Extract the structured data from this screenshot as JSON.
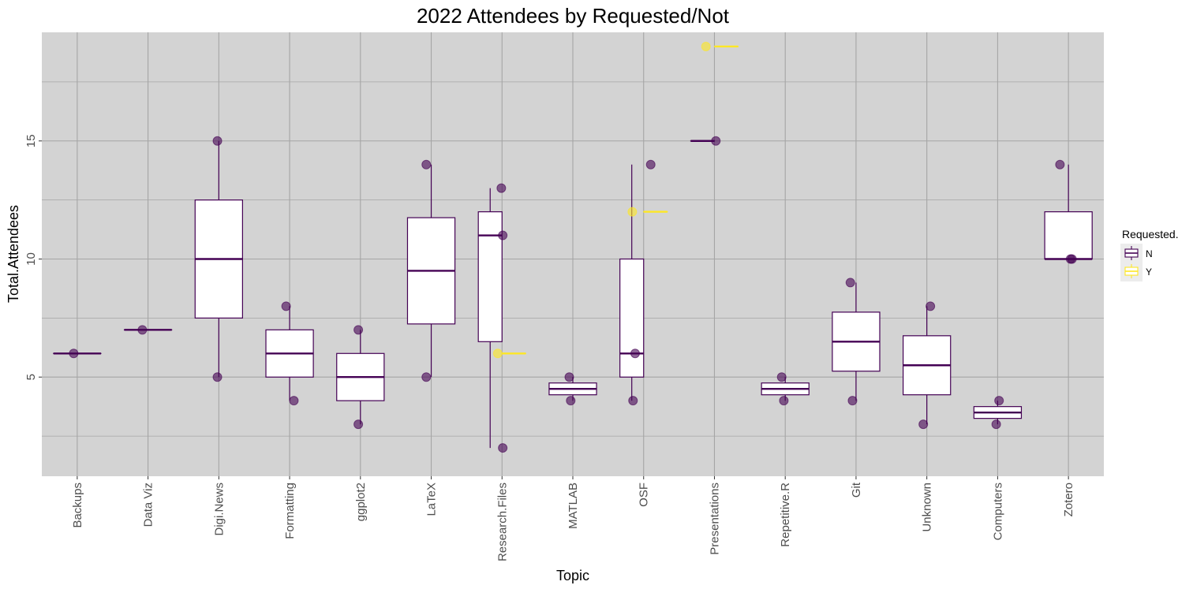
{
  "chart_data": {
    "type": "box",
    "title": "2022 Attendees by Requested/Not",
    "xlabel": "Topic",
    "ylabel": "Total.Attendees",
    "ylim": [
      0.8,
      19.6
    ],
    "y_ticks": [
      5,
      10,
      15
    ],
    "grid": true,
    "legend": {
      "title": "Requested.",
      "placement": "right",
      "entries": [
        {
          "key": "N",
          "label": "N",
          "color": "#440154"
        },
        {
          "key": "Y",
          "label": "Y",
          "color": "#FDE725"
        }
      ]
    },
    "categories": [
      "Backups",
      "Data Viz",
      "Digi.News",
      "Formatting",
      "ggplot2",
      "LaTeX",
      "Research.Files",
      "MATLAB",
      "OSF",
      "Presentations",
      "Repetitive.R",
      "Git",
      "Unknown",
      "Computers",
      "Zotero"
    ],
    "boxes": [
      {
        "category": "Backups",
        "group": "N",
        "dodged": false,
        "min": 6,
        "q1": 6,
        "median": 6,
        "q3": 6,
        "max": 6
      },
      {
        "category": "Data Viz",
        "group": "N",
        "dodged": false,
        "min": 7,
        "q1": 7,
        "median": 7,
        "q3": 7,
        "max": 7
      },
      {
        "category": "Digi.News",
        "group": "N",
        "dodged": false,
        "min": 5,
        "q1": 7.5,
        "median": 10,
        "q3": 12.5,
        "max": 15
      },
      {
        "category": "Formatting",
        "group": "N",
        "dodged": false,
        "min": 4,
        "q1": 5,
        "median": 6,
        "q3": 7,
        "max": 8
      },
      {
        "category": "ggplot2",
        "group": "N",
        "dodged": false,
        "min": 3,
        "q1": 4,
        "median": 5,
        "q3": 6,
        "max": 7
      },
      {
        "category": "LaTeX",
        "group": "N",
        "dodged": false,
        "min": 5,
        "q1": 7.25,
        "median": 9.5,
        "q3": 11.75,
        "max": 14
      },
      {
        "category": "Research.Files",
        "group": "N",
        "dodged": true,
        "min": 2,
        "q1": 6.5,
        "median": 11,
        "q3": 12,
        "max": 13
      },
      {
        "category": "Research.Files",
        "group": "Y",
        "dodged": true,
        "min": 6,
        "q1": 6,
        "median": 6,
        "q3": 6,
        "max": 6
      },
      {
        "category": "MATLAB",
        "group": "N",
        "dodged": false,
        "min": 4,
        "q1": 4.25,
        "median": 4.5,
        "q3": 4.75,
        "max": 5
      },
      {
        "category": "OSF",
        "group": "N",
        "dodged": true,
        "min": 4,
        "q1": 5,
        "median": 6,
        "q3": 10,
        "max": 14
      },
      {
        "category": "OSF",
        "group": "Y",
        "dodged": true,
        "min": 12,
        "q1": 12,
        "median": 12,
        "q3": 12,
        "max": 12
      },
      {
        "category": "Presentations",
        "group": "N",
        "dodged": true,
        "min": 15,
        "q1": 15,
        "median": 15,
        "q3": 15,
        "max": 15
      },
      {
        "category": "Presentations",
        "group": "Y",
        "dodged": true,
        "min": 19,
        "q1": 19,
        "median": 19,
        "q3": 19,
        "max": 19
      },
      {
        "category": "Repetitive.R",
        "group": "N",
        "dodged": false,
        "min": 4,
        "q1": 4.25,
        "median": 4.5,
        "q3": 4.75,
        "max": 5
      },
      {
        "category": "Git",
        "group": "N",
        "dodged": false,
        "min": 4,
        "q1": 5.25,
        "median": 6.5,
        "q3": 7.75,
        "max": 9
      },
      {
        "category": "Unknown",
        "group": "N",
        "dodged": false,
        "min": 3,
        "q1": 4.25,
        "median": 5.5,
        "q3": 6.75,
        "max": 8
      },
      {
        "category": "Computers",
        "group": "N",
        "dodged": false,
        "min": 3,
        "q1": 3.25,
        "median": 3.5,
        "q3": 3.75,
        "max": 4
      },
      {
        "category": "Zotero",
        "group": "N",
        "dodged": false,
        "min": 10,
        "q1": 10,
        "median": 10,
        "q3": 12,
        "max": 14
      }
    ],
    "points": [
      {
        "category": "Backups",
        "y": 6,
        "group": "N",
        "jitter": -0.05
      },
      {
        "category": "Data Viz",
        "y": 7,
        "group": "N",
        "jitter": -0.08
      },
      {
        "category": "Digi.News",
        "y": 15,
        "group": "N",
        "jitter": -0.02
      },
      {
        "category": "Digi.News",
        "y": 5,
        "group": "N",
        "jitter": -0.02
      },
      {
        "category": "Formatting",
        "y": 8,
        "group": "N",
        "jitter": -0.05
      },
      {
        "category": "Formatting",
        "y": 4,
        "group": "N",
        "jitter": 0.06
      },
      {
        "category": "ggplot2",
        "y": 7,
        "group": "N",
        "jitter": -0.03
      },
      {
        "category": "ggplot2",
        "y": 3,
        "group": "N",
        "jitter": -0.03
      },
      {
        "category": "LaTeX",
        "y": 14,
        "group": "N",
        "jitter": -0.07
      },
      {
        "category": "LaTeX",
        "y": 5,
        "group": "N",
        "jitter": -0.07
      },
      {
        "category": "Research.Files",
        "y": 13,
        "group": "N",
        "jitter": -0.01
      },
      {
        "category": "Research.Files",
        "y": 11,
        "group": "N",
        "jitter": 0.01
      },
      {
        "category": "Research.Files",
        "y": 2,
        "group": "N",
        "jitter": 0.01
      },
      {
        "category": "Research.Files",
        "y": 6,
        "group": "Y",
        "jitter": -0.06
      },
      {
        "category": "MATLAB",
        "y": 5,
        "group": "N",
        "jitter": -0.05
      },
      {
        "category": "MATLAB",
        "y": 4,
        "group": "N",
        "jitter": -0.03
      },
      {
        "category": "OSF",
        "y": 14,
        "group": "N",
        "jitter": 0.1
      },
      {
        "category": "OSF",
        "y": 12,
        "group": "Y",
        "jitter": -0.16
      },
      {
        "category": "OSF",
        "y": 6,
        "group": "N",
        "jitter": -0.12
      },
      {
        "category": "OSF",
        "y": 4,
        "group": "N",
        "jitter": -0.15
      },
      {
        "category": "Presentations",
        "y": 19,
        "group": "Y",
        "jitter": -0.12
      },
      {
        "category": "Presentations",
        "y": 15,
        "group": "N",
        "jitter": 0.02
      },
      {
        "category": "Repetitive.R",
        "y": 5,
        "group": "N",
        "jitter": -0.05
      },
      {
        "category": "Repetitive.R",
        "y": 4,
        "group": "N",
        "jitter": -0.02
      },
      {
        "category": "Git",
        "y": 9,
        "group": "N",
        "jitter": -0.08
      },
      {
        "category": "Git",
        "y": 4,
        "group": "N",
        "jitter": -0.05
      },
      {
        "category": "Unknown",
        "y": 8,
        "group": "N",
        "jitter": 0.05
      },
      {
        "category": "Unknown",
        "y": 3,
        "group": "N",
        "jitter": -0.05
      },
      {
        "category": "Computers",
        "y": 4,
        "group": "N",
        "jitter": 0.02
      },
      {
        "category": "Computers",
        "y": 3,
        "group": "N",
        "jitter": -0.02
      },
      {
        "category": "Zotero",
        "y": 14,
        "group": "N",
        "jitter": -0.12
      },
      {
        "category": "Zotero",
        "y": 10,
        "group": "N",
        "jitter": 0.03
      },
      {
        "category": "Zotero",
        "y": 10,
        "group": "N",
        "jitter": 0.05
      }
    ],
    "colors": {
      "panel_background": "#d3d3d3",
      "grid": "#a5a5a5",
      "box_fill": "#ffffff",
      "point_alpha_color": "#6f4a82"
    }
  }
}
